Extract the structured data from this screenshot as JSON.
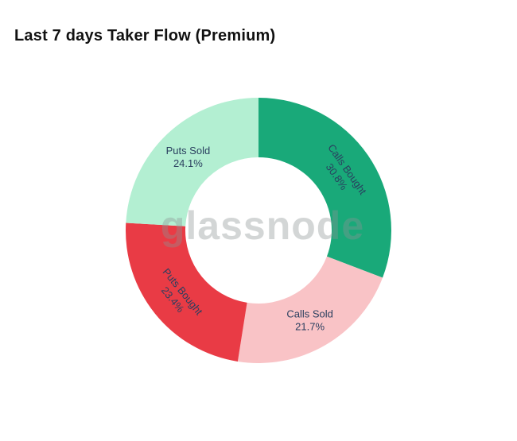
{
  "title": "Last 7 days Taker Flow (Premium)",
  "watermark": "glassnode",
  "chart_data": {
    "type": "pie",
    "subtype": "donut",
    "title": "Last 7 days Taker Flow (Premium)",
    "labels": [
      "Calls Bought",
      "Calls Sold",
      "Puts Bought",
      "Puts Sold"
    ],
    "values": [
      30.8,
      21.7,
      23.4,
      24.1
    ],
    "value_labels": [
      "30.8%",
      "21.7%",
      "23.4%",
      "24.1%"
    ],
    "colors": [
      "#19a979",
      "#f9c3c6",
      "#e93b45",
      "#b3efd2"
    ],
    "hole_ratio": 0.55,
    "start_angle_deg": 0,
    "direction": "clockwise",
    "legend": "none",
    "labels_position": "inside",
    "label_text_color": "#2a3f5f",
    "label_rotations_deg": [
      55,
      0,
      51,
      0
    ]
  }
}
